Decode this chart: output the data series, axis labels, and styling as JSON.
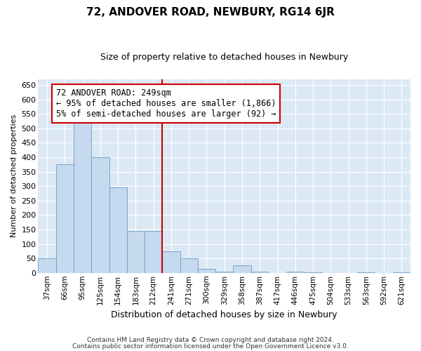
{
  "title": "72, ANDOVER ROAD, NEWBURY, RG14 6JR",
  "subtitle": "Size of property relative to detached houses in Newbury",
  "xlabel": "Distribution of detached houses by size in Newbury",
  "ylabel": "Number of detached properties",
  "footer_line1": "Contains HM Land Registry data © Crown copyright and database right 2024.",
  "footer_line2": "Contains public sector information licensed under the Open Government Licence v3.0.",
  "annotation_line1": "72 ANDOVER ROAD: 249sqm",
  "annotation_line2": "← 95% of detached houses are smaller (1,866)",
  "annotation_line3": "5% of semi-detached houses are larger (92) →",
  "categories": [
    "37sqm",
    "66sqm",
    "95sqm",
    "125sqm",
    "154sqm",
    "183sqm",
    "212sqm",
    "241sqm",
    "271sqm",
    "300sqm",
    "329sqm",
    "358sqm",
    "387sqm",
    "417sqm",
    "446sqm",
    "475sqm",
    "504sqm",
    "533sqm",
    "563sqm",
    "592sqm",
    "621sqm"
  ],
  "values": [
    50,
    375,
    525,
    400,
    295,
    145,
    145,
    75,
    50,
    15,
    5,
    25,
    5,
    0,
    5,
    2,
    0,
    0,
    2,
    0,
    2
  ],
  "bar_color": "#c5d9ef",
  "bar_edge_color": "#6a9dc8",
  "vline_x_index": 7,
  "vline_color": "#cc0000",
  "background_color": "#dce9f5",
  "ylim": [
    0,
    670
  ],
  "yticks": [
    0,
    50,
    100,
    150,
    200,
    250,
    300,
    350,
    400,
    450,
    500,
    550,
    600,
    650
  ],
  "annotation_box_color": "#cc0000",
  "annotation_bg": "#ffffff",
  "title_fontsize": 11,
  "subtitle_fontsize": 9,
  "xlabel_fontsize": 9,
  "ylabel_fontsize": 8,
  "tick_fontsize": 8,
  "xtick_fontsize": 7.5,
  "footer_fontsize": 6.5,
  "annotation_fontsize": 8.5
}
